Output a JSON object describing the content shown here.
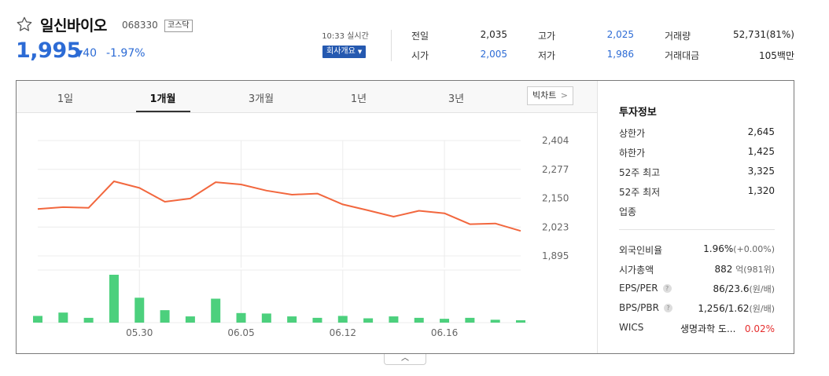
{
  "stock": {
    "name": "일신바이오",
    "code": "068330",
    "market": "코스닥",
    "price": "1,995",
    "change_arrow": "▼",
    "change": "40",
    "rate": "-1.97%",
    "time": "10:33 실시간",
    "company_button": "회사개요"
  },
  "quote": {
    "prev_close_label": "전일",
    "prev_close": "2,035",
    "open_label": "시가",
    "open": "2,005",
    "high_label": "고가",
    "high": "2,025",
    "low_label": "저가",
    "low": "1,986",
    "volume_label": "거래량",
    "volume": "52,731(81%)",
    "amount_label": "거래대금",
    "amount": "105백만"
  },
  "tabs": [
    "1일",
    "1개월",
    "3개월",
    "1년",
    "3년"
  ],
  "active_tab": 1,
  "big_chart_label": "빅차트",
  "chart_data": {
    "type": "line",
    "y_ticks": [
      "2,404",
      "2,277",
      "2,150",
      "2,023",
      "1,895"
    ],
    "ylim": [
      1895,
      2404
    ],
    "x_ticks": [
      "05.30",
      "06.05",
      "06.12",
      "06.16"
    ],
    "line_color": "#f2673e",
    "bar_color": "#4cd07d",
    "prices": [
      2102,
      2110,
      2107,
      2224,
      2195,
      2134,
      2148,
      2220,
      2210,
      2183,
      2165,
      2170,
      2122,
      2096,
      2068,
      2094,
      2083,
      2035,
      2038,
      2005
    ],
    "volume_relative": [
      0.14,
      0.21,
      0.1,
      1.0,
      0.52,
      0.26,
      0.13,
      0.5,
      0.2,
      0.19,
      0.13,
      0.1,
      0.14,
      0.09,
      0.13,
      0.1,
      0.08,
      0.1,
      0.06,
      0.05
    ]
  },
  "invest": {
    "title": "투자정보",
    "upper_limit_label": "상한가",
    "upper_limit": "2,645",
    "lower_limit_label": "하한가",
    "lower_limit": "1,425",
    "high52_label": "52주 최고",
    "high52": "3,325",
    "low52_label": "52주 최저",
    "low52": "1,320",
    "sector_label": "업종",
    "foreign_label": "외국인비율",
    "foreign": "1.96%",
    "foreign_sub": "(+0.00%)",
    "mktcap_label": "시가총액",
    "mktcap": "882",
    "mktcap_sub": "억(981위)",
    "eps_label": "EPS/PER",
    "eps": "86/23.6",
    "eps_sub": "(원/배)",
    "bps_label": "BPS/PBR",
    "bps": "1,256/1.62",
    "bps_sub": "(원/배)",
    "wics_label": "WICS",
    "wics": "생명과학 도...",
    "wics_rate": "0.02%"
  },
  "colors": {
    "up": "#e62e2e",
    "down": "#2c6bd5",
    "accent": "#2559b0"
  },
  "toggle_icon": "chevron-up-icon",
  "toggle_glyph": "︿"
}
